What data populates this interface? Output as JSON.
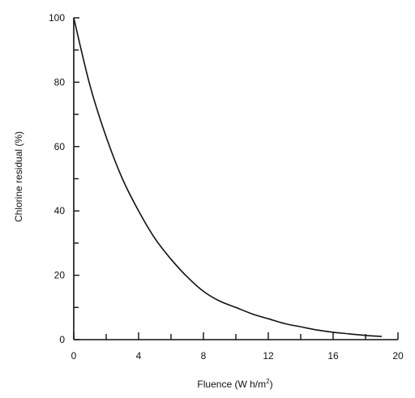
{
  "chart_data": {
    "type": "line",
    "title": "",
    "xlabel_main": "Fluence (W h/m",
    "xlabel_sup": "2",
    "xlabel_tail": ")",
    "ylabel": "Chlorine residual (%)",
    "xlim": [
      0,
      20
    ],
    "ylim": [
      0,
      100
    ],
    "x_tick_labels": [
      "0",
      "4",
      "8",
      "12",
      "16",
      "20"
    ],
    "y_tick_labels": [
      "0",
      "20",
      "40",
      "60",
      "80",
      "100"
    ],
    "x_major_ticks": [
      0,
      4,
      8,
      12,
      16,
      20
    ],
    "x_minor_ticks": [
      2,
      6,
      10,
      14,
      18
    ],
    "y_major_ticks": [
      0,
      20,
      40,
      60,
      80,
      100
    ],
    "y_minor_ticks": [
      10,
      30,
      50,
      70,
      90
    ],
    "grid": false,
    "series": [
      {
        "x": [
          0,
          1,
          2,
          3,
          4,
          5,
          6,
          7,
          8,
          9,
          10,
          11,
          12,
          13,
          14,
          15,
          16,
          17,
          18,
          19
        ],
        "y": [
          100,
          79,
          63,
          50,
          40,
          31.5,
          25,
          19.5,
          15,
          12,
          10,
          8,
          6.5,
          5,
          4,
          3,
          2.3,
          1.8,
          1.3,
          1
        ]
      }
    ],
    "line_color": "#111111"
  }
}
